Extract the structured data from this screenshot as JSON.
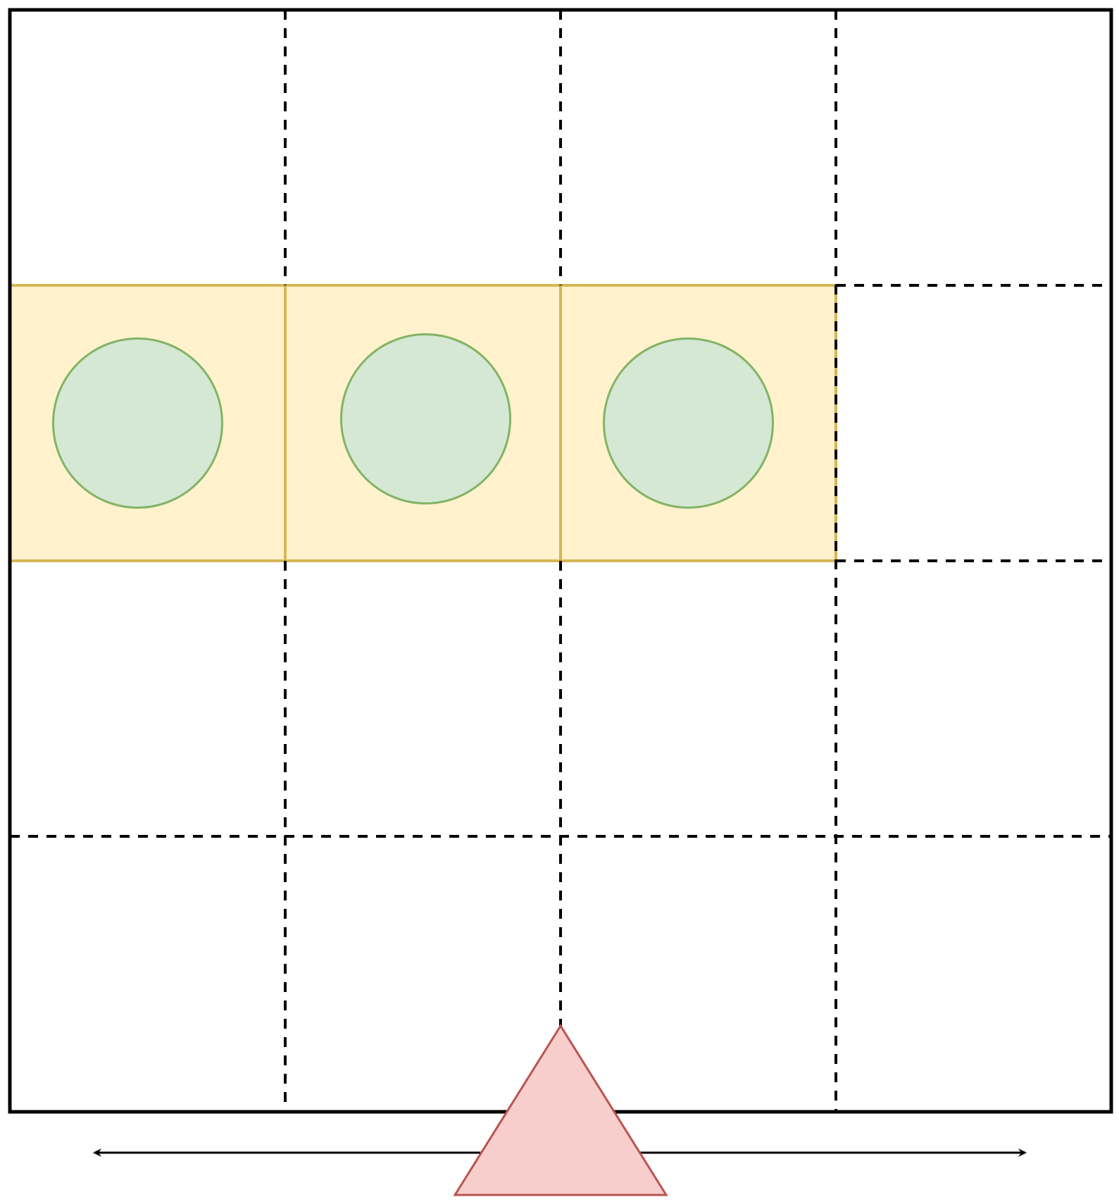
{
  "grid": {
    "rows": 4,
    "cols": 4,
    "highlight": {
      "row": 1,
      "cells": [
        0,
        1,
        2
      ]
    }
  },
  "pieces": [
    {
      "type": "circle",
      "row": 1,
      "col": 0
    },
    {
      "type": "circle",
      "row": 1,
      "col": 1
    },
    {
      "type": "circle",
      "row": 1,
      "col": 2
    }
  ],
  "player": {
    "type": "triangle",
    "movement": "horizontal"
  },
  "colors": {
    "grid_border": "#000000",
    "grid_lines": "#000000",
    "highlight_fill": "#fff2cc",
    "highlight_stroke": "#d6b656",
    "circle_fill": "#d5e8d4",
    "circle_stroke": "#82b366",
    "triangle_fill": "#f8cecc",
    "triangle_stroke": "#b85450",
    "arrow": "#000000"
  },
  "icons": {
    "circle": "circle-icon",
    "triangle": "triangle-icon",
    "arrow": "double-headed-arrow-icon"
  }
}
